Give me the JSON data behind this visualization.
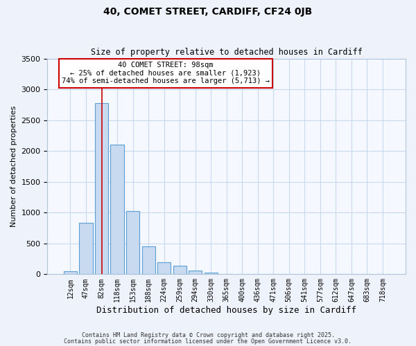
{
  "title": "40, COMET STREET, CARDIFF, CF24 0JB",
  "subtitle": "Size of property relative to detached houses in Cardiff",
  "xlabel": "Distribution of detached houses by size in Cardiff",
  "ylabel": "Number of detached properties",
  "bin_labels": [
    "12sqm",
    "47sqm",
    "82sqm",
    "118sqm",
    "153sqm",
    "188sqm",
    "224sqm",
    "259sqm",
    "294sqm",
    "330sqm",
    "365sqm",
    "400sqm",
    "436sqm",
    "471sqm",
    "506sqm",
    "541sqm",
    "577sqm",
    "612sqm",
    "647sqm",
    "683sqm",
    "718sqm"
  ],
  "bar_values": [
    50,
    840,
    2780,
    2100,
    1030,
    450,
    200,
    140,
    55,
    25,
    5,
    0,
    0,
    0,
    0,
    0,
    0,
    0,
    0,
    0,
    0
  ],
  "bar_color": "#c8daf0",
  "bar_edge_color": "#5a9fd4",
  "vline_color": "#cc0000",
  "ylim": [
    0,
    3500
  ],
  "yticks": [
    0,
    500,
    1000,
    1500,
    2000,
    2500,
    3000,
    3500
  ],
  "annotation_title": "40 COMET STREET: 98sqm",
  "annotation_line1": "← 25% of detached houses are smaller (1,923)",
  "annotation_line2": "74% of semi-detached houses are larger (5,713) →",
  "annotation_box_color": "#ffffff",
  "annotation_border_color": "#cc0000",
  "footer1": "Contains HM Land Registry data © Crown copyright and database right 2025.",
  "footer2": "Contains public sector information licensed under the Open Government Licence v3.0.",
  "bg_color": "#eef2fa",
  "plot_bg_color": "#f5f8ff",
  "grid_color": "#c8d8f0"
}
